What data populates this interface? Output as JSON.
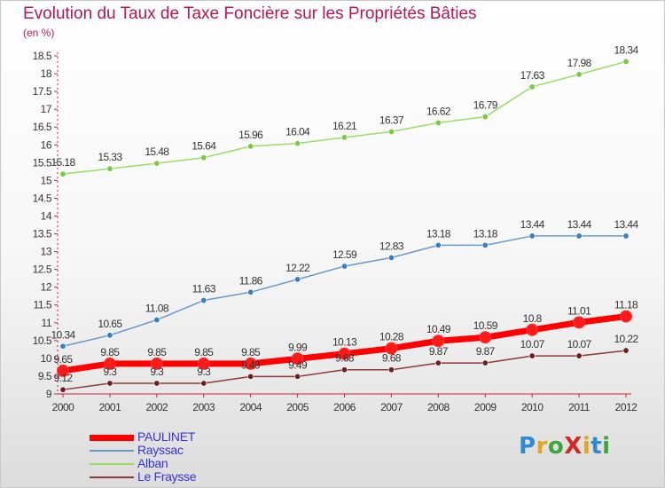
{
  "title": "Evolution du Taux de Taxe Foncière sur les Propriétés Bâties",
  "subtitle": "(en %)",
  "logo": {
    "text": "ProXiti",
    "letter_colors": [
      "#2f8ad6",
      "#e8a31a",
      "#3aa63a",
      "#d6281e",
      "#e8a31a",
      "#2f8ad6",
      "#3aa63a"
    ]
  },
  "chart_data": {
    "type": "line",
    "x": [
      2000,
      2001,
      2002,
      2003,
      2004,
      2005,
      2006,
      2007,
      2008,
      2009,
      2010,
      2011,
      2012
    ],
    "ylim": [
      9,
      18.5
    ],
    "yticks": [
      "9",
      "9.5",
      "10",
      "10.5",
      "11",
      "11.5",
      "12",
      "12.5",
      "13",
      "13.5",
      "14",
      "14.5",
      "15",
      "15.5",
      "16",
      "16.5",
      "17",
      "17.5",
      "18",
      "18.5"
    ],
    "grid": false,
    "legend_position": "bottom-left",
    "series": [
      {
        "name": "PAULINET",
        "color": "#ff0000",
        "marker_color": "#ff1a1a",
        "values": [
          9.65,
          9.85,
          9.85,
          9.85,
          9.85,
          9.99,
          10.13,
          10.28,
          10.49,
          10.59,
          10.8,
          11.01,
          11.18
        ],
        "labels": [
          "9.65",
          "9.85",
          "9.85",
          "9.85",
          "9.85",
          "9.99",
          "10.13",
          "10.28",
          "10.49",
          "10.59",
          "10.8",
          "11.01",
          "11.18"
        ]
      },
      {
        "name": "Rayssac",
        "color": "#6699cc",
        "marker_color": "#3a7ec2",
        "values": [
          10.34,
          10.65,
          11.08,
          11.63,
          11.86,
          12.22,
          12.59,
          12.83,
          13.18,
          13.18,
          13.44,
          13.44,
          13.44
        ],
        "labels": [
          "10.34",
          "10.65",
          "11.08",
          "11.63",
          "11.86",
          "12.22",
          "12.59",
          "12.83",
          "13.18",
          "13.18",
          "13.44",
          "13.44",
          "13.44"
        ]
      },
      {
        "name": "Alban",
        "color": "#99dd66",
        "marker_color": "#7ac943",
        "values": [
          15.18,
          15.33,
          15.48,
          15.64,
          15.96,
          16.04,
          16.21,
          16.37,
          16.62,
          16.79,
          17.63,
          17.98,
          18.34
        ],
        "labels": [
          "15.18",
          "15.33",
          "15.48",
          "15.64",
          "15.96",
          "16.04",
          "16.21",
          "16.37",
          "16.62",
          "16.79",
          "17.63",
          "17.98",
          "18.34"
        ]
      },
      {
        "name": "Le Fraysse",
        "color": "#8a3a3a",
        "marker_color": "#6b1f1f",
        "values": [
          9.12,
          9.3,
          9.3,
          9.3,
          9.49,
          9.49,
          9.68,
          9.68,
          9.87,
          9.87,
          10.07,
          10.07,
          10.22
        ],
        "labels": [
          "9.12",
          "9.3",
          "9.3",
          "9.3",
          "9.49",
          "9.49",
          "9.68",
          "9.68",
          "9.87",
          "9.87",
          "10.07",
          "10.07",
          "10.22"
        ]
      }
    ]
  }
}
